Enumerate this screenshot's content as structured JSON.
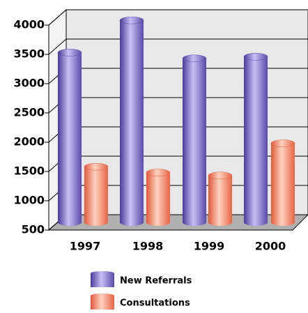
{
  "chart_data": {
    "type": "bar",
    "categories": [
      "1997",
      "1998",
      "1999",
      "2000"
    ],
    "series": [
      {
        "name": "New Referrals",
        "color": "#8a78d8",
        "values": [
          3400,
          3950,
          3300,
          3330
        ]
      },
      {
        "name": "Consultations",
        "color": "#f5906e",
        "values": [
          1450,
          1350,
          1300,
          1850
        ]
      }
    ],
    "ylim": [
      500,
      4000
    ],
    "yticks": [
      500,
      1000,
      1500,
      2000,
      2500,
      3000,
      3500,
      4000
    ],
    "grid": true
  }
}
